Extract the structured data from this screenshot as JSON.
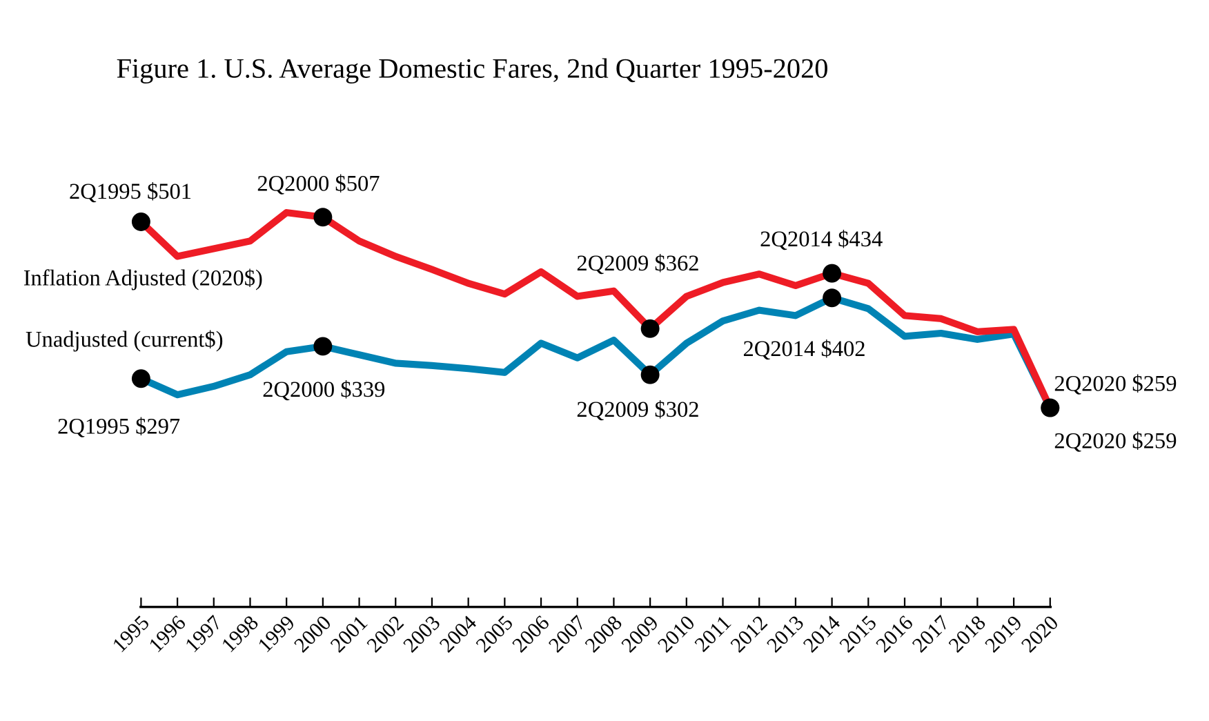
{
  "chart_data": {
    "type": "line",
    "title": "Figure 1.  U.S. Average Domestic Fares, 2nd Quarter 1995-2020",
    "xlabel": "",
    "ylabel": "",
    "grid": false,
    "legend": "inline labels",
    "x": [
      1995,
      1996,
      1997,
      1998,
      1999,
      2000,
      2001,
      2002,
      2003,
      2004,
      2005,
      2006,
      2007,
      2008,
      2009,
      2010,
      2011,
      2012,
      2013,
      2014,
      2015,
      2016,
      2017,
      2018,
      2019,
      2020
    ],
    "x_tick_labels": [
      "1995",
      "1996",
      "1997",
      "1998",
      "1999",
      "2000",
      "2001",
      "2002",
      "2003",
      "2004",
      "2005",
      "2006",
      "2007",
      "2008",
      "2009",
      "2010",
      "2011",
      "2012",
      "2013",
      "2014",
      "2015",
      "2016",
      "2017",
      "2018",
      "2019",
      "2020"
    ],
    "series": [
      {
        "name": "Inflation Adjusted (2020$)",
        "color": "#ee1c25",
        "values": [
          501,
          456,
          466,
          476,
          513,
          507,
          476,
          456,
          439,
          421,
          407,
          436,
          404,
          411,
          362,
          404,
          422,
          433,
          418,
          434,
          421,
          379,
          375,
          358,
          361,
          259
        ]
      },
      {
        "name": "Unadjusted (current$)",
        "color": "#0083b4",
        "values": [
          297,
          276,
          287,
          302,
          332,
          339,
          328,
          317,
          314,
          310,
          305,
          343,
          324,
          347,
          302,
          343,
          372,
          386,
          379,
          402,
          388,
          352,
          356,
          348,
          355,
          259
        ]
      }
    ],
    "annotations": [
      {
        "series": 0,
        "x": 1995,
        "text": "2Q1995 $501"
      },
      {
        "series": 0,
        "x": 2000,
        "text": "2Q2000 $507"
      },
      {
        "series": 0,
        "x": 2009,
        "text": "2Q2009 $362"
      },
      {
        "series": 0,
        "x": 2014,
        "text": "2Q2014 $434"
      },
      {
        "series": 0,
        "x": 2020,
        "text": "2Q2020 $259"
      },
      {
        "series": 1,
        "x": 1995,
        "text": "2Q1995 $297"
      },
      {
        "series": 1,
        "x": 2000,
        "text": "2Q2000 $339"
      },
      {
        "series": 1,
        "x": 2009,
        "text": "2Q2009 $302"
      },
      {
        "series": 1,
        "x": 2014,
        "text": "2Q2014 $402"
      },
      {
        "series": 1,
        "x": 2020,
        "text": "2Q2020 $259"
      }
    ],
    "marker_color": "#000000"
  }
}
